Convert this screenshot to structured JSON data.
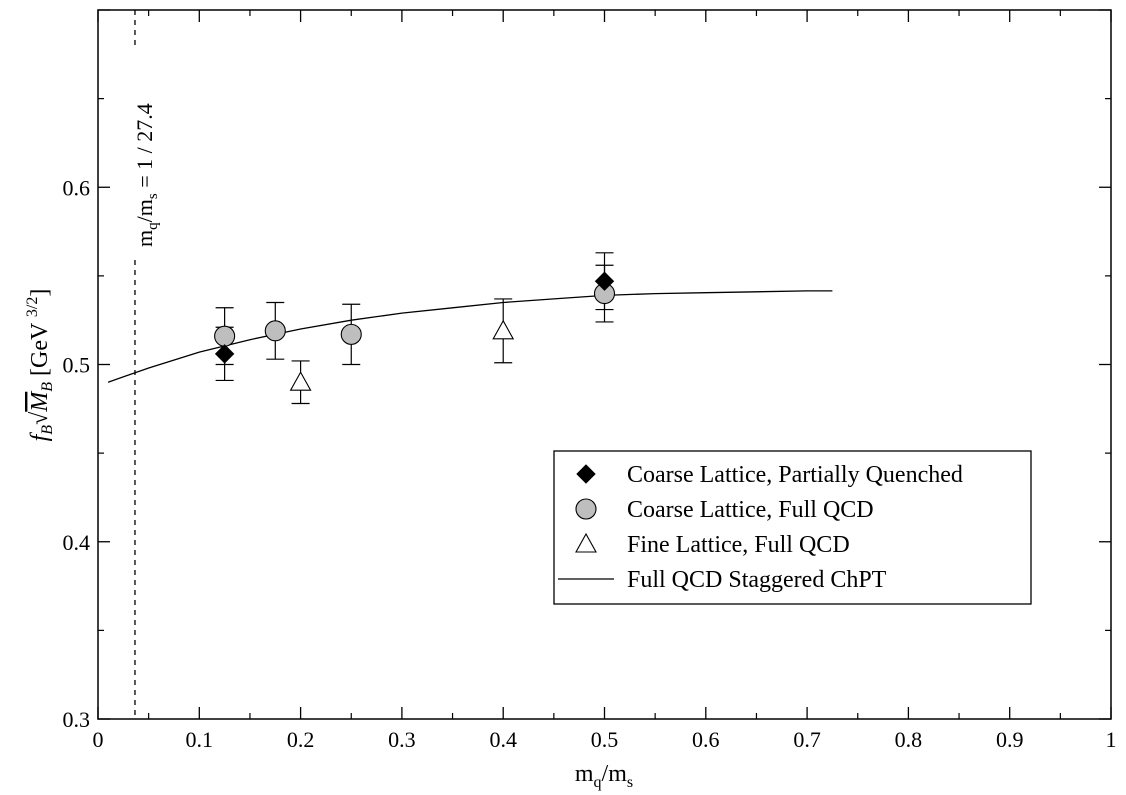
{
  "chart_data": {
    "type": "scatter",
    "xlabel": "m_q/m_s",
    "ylabel": "f_B √M_B [GeV^3/2]",
    "xlim": [
      0,
      1
    ],
    "ylim": [
      0.3,
      0.7
    ],
    "x_ticks": [
      "0",
      "0.1",
      "0.2",
      "0.3",
      "0.4",
      "0.5",
      "0.6",
      "0.7",
      "0.8",
      "0.9",
      "1"
    ],
    "y_ticks": [
      "0.3",
      "0.4",
      "0.5",
      "0.6"
    ],
    "grid": false,
    "legend_position": "lower-right",
    "series": [
      {
        "name": "Coarse Lattice, Partially Quenched",
        "marker": "diamond",
        "color": "#000000",
        "points": [
          {
            "x": 0.125,
            "y": 0.506,
            "err": 0.015
          },
          {
            "x": 0.5,
            "y": 0.547,
            "err": 0.016
          }
        ]
      },
      {
        "name": "Coarse Lattice, Full QCD",
        "marker": "circle",
        "color": "#bebebe",
        "points": [
          {
            "x": 0.125,
            "y": 0.516,
            "err": 0.016
          },
          {
            "x": 0.175,
            "y": 0.519,
            "err": 0.016
          },
          {
            "x": 0.25,
            "y": 0.517,
            "err": 0.017
          },
          {
            "x": 0.5,
            "y": 0.54,
            "err": 0.016
          }
        ]
      },
      {
        "name": "Fine Lattice, Full QCD",
        "marker": "triangle",
        "color": "#ffffff",
        "points": [
          {
            "x": 0.2,
            "y": 0.49,
            "err": 0.012
          },
          {
            "x": 0.4,
            "y": 0.519,
            "err": 0.018
          }
        ]
      },
      {
        "name": "Full QCD Staggered ChPT",
        "marker": "line",
        "color": "#000000",
        "points": [
          {
            "x": 0.01,
            "y": 0.49
          },
          {
            "x": 0.05,
            "y": 0.498
          },
          {
            "x": 0.1,
            "y": 0.507
          },
          {
            "x": 0.15,
            "y": 0.514
          },
          {
            "x": 0.2,
            "y": 0.52
          },
          {
            "x": 0.25,
            "y": 0.525
          },
          {
            "x": 0.3,
            "y": 0.529
          },
          {
            "x": 0.35,
            "y": 0.532
          },
          {
            "x": 0.4,
            "y": 0.535
          },
          {
            "x": 0.45,
            "y": 0.537
          },
          {
            "x": 0.5,
            "y": 0.539
          },
          {
            "x": 0.55,
            "y": 0.54
          },
          {
            "x": 0.6,
            "y": 0.5405
          },
          {
            "x": 0.65,
            "y": 0.541
          },
          {
            "x": 0.7,
            "y": 0.5415
          },
          {
            "x": 0.725,
            "y": 0.5415
          }
        ]
      }
    ],
    "annotations": [
      {
        "type": "vline",
        "x": 0.0365,
        "style": "dashed",
        "label": "m_q/m_s = 1 / 27.4"
      }
    ]
  }
}
